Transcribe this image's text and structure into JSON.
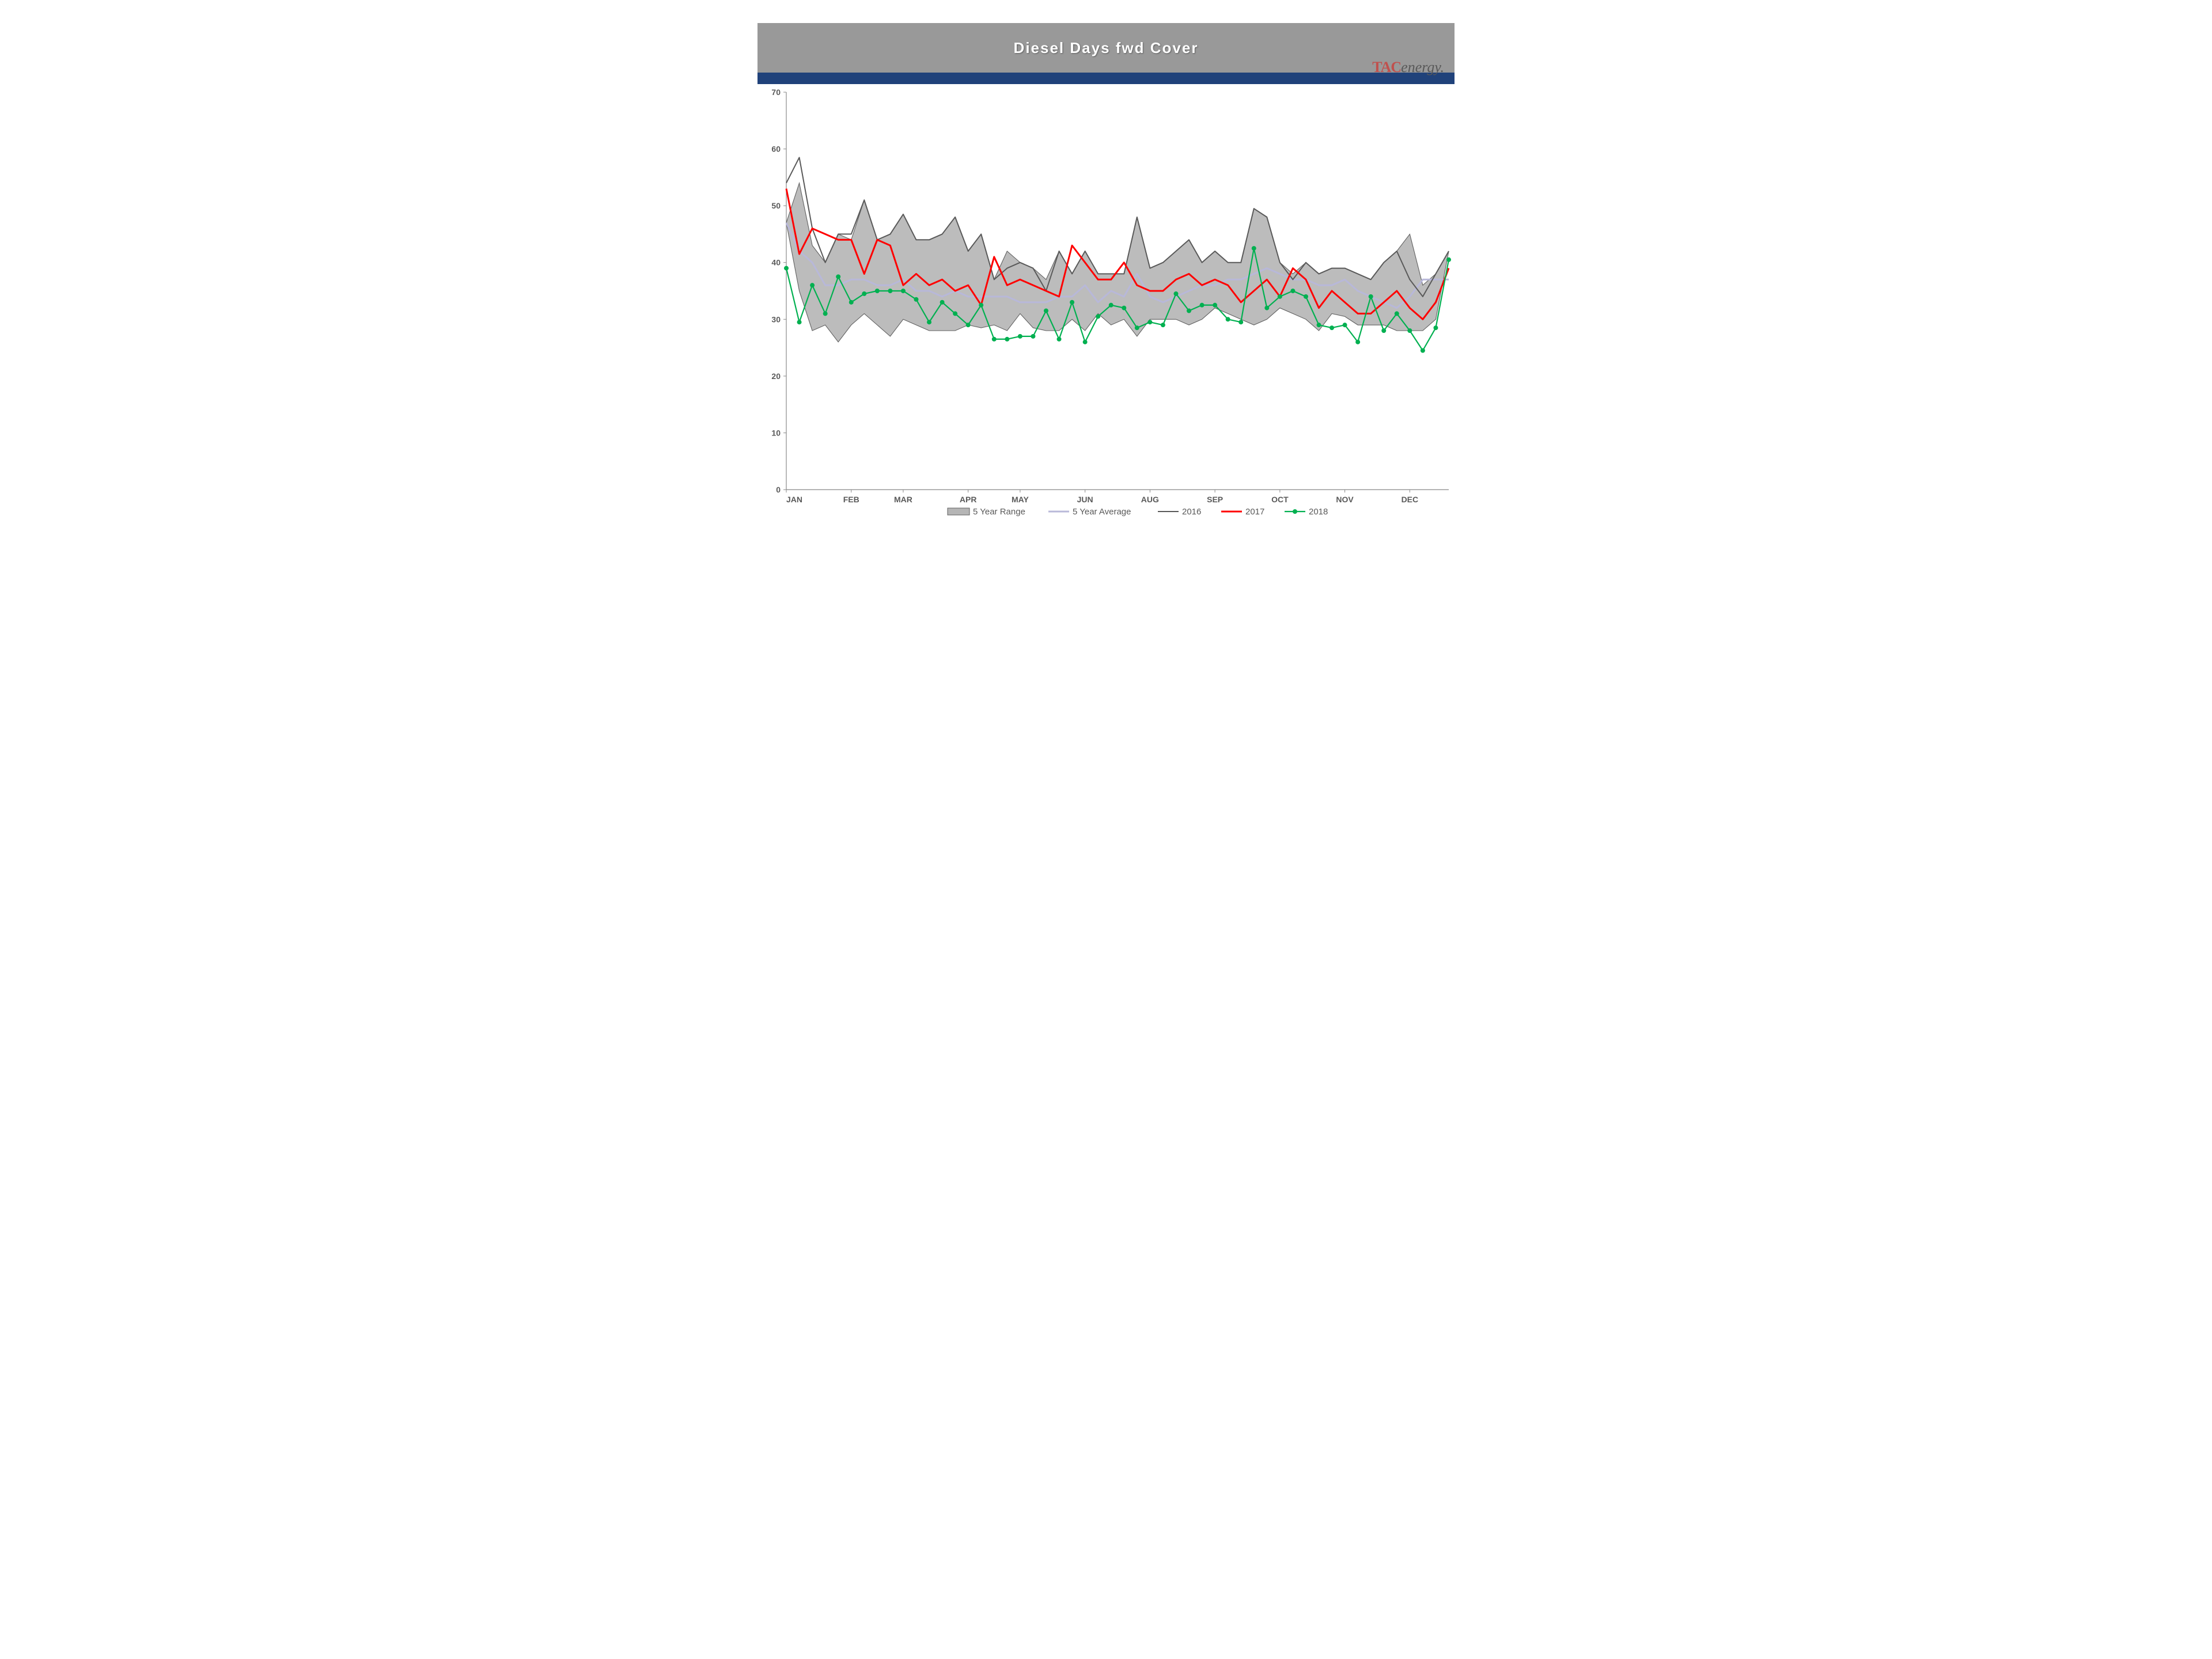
{
  "title": "Diesel Days fwd Cover",
  "logo": {
    "tac": "TAC",
    "energy": "energy."
  },
  "colors": {
    "header_gray": "#999999",
    "header_blue": "#20427a",
    "title_text": "#ffffff",
    "logo_tac": "#c0504d",
    "logo_energy": "#595959",
    "axis_text": "#595959",
    "axis_line": "#888888",
    "band_fill": "#b5b5b5",
    "band_edge": "#606060",
    "avg_line": "#b8b8d9",
    "s2016": "#595959",
    "s2017": "#ff0000",
    "s2018": "#00b050",
    "marker_fill": "#00b050"
  },
  "chart": {
    "type": "line-band",
    "ylim": [
      0,
      70
    ],
    "ytick_step": 10,
    "x_labels": [
      "JAN",
      "FEB",
      "MAR",
      "APR",
      "MAY",
      "JUN",
      "AUG",
      "SEP",
      "OCT",
      "NOV",
      "DEC"
    ],
    "x_weeks_total": 52,
    "x_tick_weeks": [
      0,
      5,
      9,
      14,
      18,
      23,
      28,
      33,
      38,
      43,
      48
    ],
    "axis_fontsize": 14,
    "legend_fontsize": 15,
    "line_width_band_edge": 1.1,
    "line_width_avg": 3.0,
    "line_width_2016": 2.0,
    "line_width_2017": 3.0,
    "line_width_2018": 2.2,
    "marker_radius": 3.5,
    "range_upper": [
      47,
      54,
      43,
      40,
      45,
      44,
      51,
      44,
      45,
      48.5,
      44,
      44,
      45,
      48,
      42,
      45,
      37,
      42,
      40,
      39,
      37,
      42,
      38,
      42,
      38,
      38,
      38,
      48,
      39,
      40,
      42,
      44,
      40,
      42,
      40,
      40,
      49.5,
      48,
      40,
      38,
      40,
      38,
      39,
      39,
      38,
      37,
      40,
      42,
      45,
      36,
      38,
      42
    ],
    "range_lower": [
      47,
      35,
      28,
      29,
      26,
      29,
      31,
      29,
      27,
      30,
      29,
      28,
      28,
      28,
      29,
      28.5,
      29,
      28,
      31,
      28.5,
      28,
      28,
      30,
      28,
      31,
      29,
      30,
      27,
      30,
      30,
      30,
      29,
      30,
      32,
      31,
      30,
      29,
      30,
      32,
      31,
      30,
      28,
      31,
      30.5,
      29,
      29,
      29,
      28,
      28,
      28,
      30,
      42
    ],
    "avg": [
      47,
      42,
      40,
      36,
      36,
      37,
      37,
      36,
      36,
      37,
      35,
      35,
      34,
      35,
      34,
      34,
      34,
      34,
      33,
      33,
      33,
      34,
      34,
      36,
      33,
      35,
      34,
      38,
      34,
      33,
      34,
      35,
      36,
      36,
      37,
      37,
      38,
      39,
      38,
      37,
      37,
      36,
      36,
      37,
      35,
      34,
      33,
      32,
      34,
      37,
      37,
      37
    ],
    "s2016": [
      54,
      58.5,
      46,
      40,
      45,
      45,
      51,
      44,
      45,
      48.5,
      44,
      44,
      45,
      48,
      42,
      45,
      37,
      39,
      40,
      39,
      35,
      42,
      38,
      42,
      38,
      38,
      38,
      48,
      39,
      40,
      42,
      44,
      40,
      42,
      40,
      40,
      49.5,
      48,
      40,
      37,
      40,
      38,
      39,
      39,
      38,
      37,
      40,
      42,
      37,
      34,
      38,
      42
    ],
    "s2017": [
      53,
      41.5,
      46,
      45,
      44,
      44,
      38,
      44,
      43,
      36,
      38,
      36,
      37,
      35,
      36,
      32.5,
      41,
      36,
      37,
      36,
      35,
      34,
      43,
      40,
      37,
      37,
      40,
      36,
      35,
      35,
      37,
      38,
      36,
      37,
      36,
      33,
      35,
      37,
      34,
      39,
      37,
      32,
      35,
      33,
      31,
      31,
      33,
      35,
      32,
      30,
      33,
      39
    ],
    "s2018": [
      39,
      29.5,
      36,
      31,
      37.5,
      33,
      34.5,
      35,
      35,
      35,
      33.5,
      29.5,
      33,
      31,
      29,
      32.5,
      26.5,
      26.5,
      27,
      27,
      31.5,
      26.5,
      33,
      26,
      30.5,
      32.5,
      32,
      28.5,
      29.5,
      29,
      34.5,
      31.5,
      32.5,
      32.5,
      30,
      29.5,
      42.5,
      32,
      34,
      35,
      34,
      29,
      28.5,
      29,
      26,
      34,
      28,
      31,
      28,
      24.5,
      28.5,
      40.5
    ]
  },
  "legend": [
    {
      "key": "range",
      "label": "5 Year Range"
    },
    {
      "key": "avg",
      "label": "5 Year Average"
    },
    {
      "key": "s2016",
      "label": "2016"
    },
    {
      "key": "s2017",
      "label": "2017"
    },
    {
      "key": "s2018",
      "label": "2018"
    }
  ]
}
